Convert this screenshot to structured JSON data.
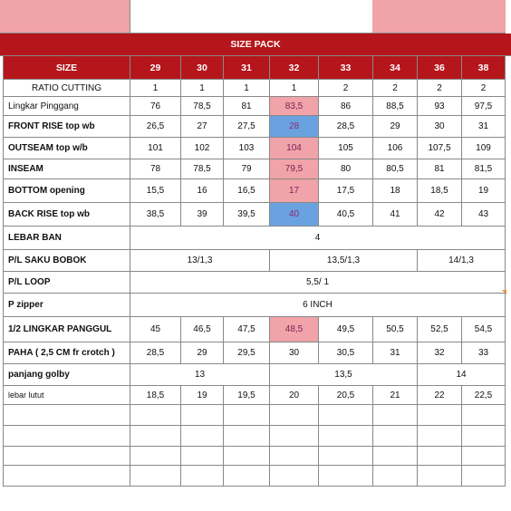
{
  "colors": {
    "header_red": "#b5161c",
    "highlight_pink": "#f0a3a8",
    "highlight_blue": "#6aa2e0"
  },
  "title": "SIZE PACK",
  "size_label": "SIZE",
  "sizes": [
    "29",
    "30",
    "31",
    "32",
    "33",
    "34",
    "36",
    "38"
  ],
  "rows": [
    {
      "label": "RATIO CUTTING",
      "bold": false,
      "center": true,
      "cells": [
        {
          "text": "1",
          "span": 1
        },
        {
          "text": "1",
          "span": 1
        },
        {
          "text": "1",
          "span": 1
        },
        {
          "text": "1",
          "span": 1
        },
        {
          "text": "2",
          "span": 1
        },
        {
          "text": "2",
          "span": 1
        },
        {
          "text": "2",
          "span": 1
        },
        {
          "text": "2",
          "span": 1
        }
      ]
    },
    {
      "label": "Lingkar Pinggang",
      "bold": false,
      "cells": [
        {
          "text": "76",
          "span": 1
        },
        {
          "text": "78,5",
          "span": 1
        },
        {
          "text": "81",
          "span": 1
        },
        {
          "text": "83,5",
          "span": 1,
          "hl": "pink"
        },
        {
          "text": "86",
          "span": 1
        },
        {
          "text": "88,5",
          "span": 1
        },
        {
          "text": "93",
          "span": 1
        },
        {
          "text": "97,5",
          "span": 1
        }
      ]
    },
    {
      "label": "FRONT RISE top wb",
      "bold": true,
      "cells": [
        {
          "text": "26,5",
          "span": 1
        },
        {
          "text": "27",
          "span": 1
        },
        {
          "text": "27,5",
          "span": 1
        },
        {
          "text": "28",
          "span": 1,
          "hl": "blue"
        },
        {
          "text": "28,5",
          "span": 1
        },
        {
          "text": "29",
          "span": 1
        },
        {
          "text": "30",
          "span": 1
        },
        {
          "text": "31",
          "span": 1
        }
      ]
    },
    {
      "label": "OUTSEAM top w/b",
      "bold": true,
      "cells": [
        {
          "text": "101",
          "span": 1
        },
        {
          "text": "102",
          "span": 1
        },
        {
          "text": "103",
          "span": 1
        },
        {
          "text": "104",
          "span": 1,
          "hl": "pink"
        },
        {
          "text": "105",
          "span": 1
        },
        {
          "text": "106",
          "span": 1
        },
        {
          "text": "107,5",
          "span": 1
        },
        {
          "text": "109",
          "span": 1
        }
      ]
    },
    {
      "label": "INSEAM",
      "bold": true,
      "cells": [
        {
          "text": "78",
          "span": 1
        },
        {
          "text": "78,5",
          "span": 1
        },
        {
          "text": "79",
          "span": 1
        },
        {
          "text": "79,5",
          "span": 1,
          "hl": "pink"
        },
        {
          "text": "80",
          "span": 1
        },
        {
          "text": "80,5",
          "span": 1
        },
        {
          "text": "81",
          "span": 1
        },
        {
          "text": "81,5",
          "span": 1
        }
      ]
    },
    {
      "label": "BOTTOM opening",
      "bold": true,
      "cells": [
        {
          "text": "15,5",
          "span": 1
        },
        {
          "text": "16",
          "span": 1
        },
        {
          "text": "16,5",
          "span": 1
        },
        {
          "text": "17",
          "span": 1,
          "hl": "pink"
        },
        {
          "text": "17,5",
          "span": 1
        },
        {
          "text": "18",
          "span": 1
        },
        {
          "text": "18,5",
          "span": 1
        },
        {
          "text": "19",
          "span": 1
        }
      ]
    },
    {
      "label": "BACK RISE top wb",
      "bold": true,
      "cells": [
        {
          "text": "38,5",
          "span": 1
        },
        {
          "text": "39",
          "span": 1
        },
        {
          "text": "39,5",
          "span": 1
        },
        {
          "text": "40",
          "span": 1,
          "hl": "blue"
        },
        {
          "text": "40,5",
          "span": 1
        },
        {
          "text": "41",
          "span": 1
        },
        {
          "text": "42",
          "span": 1
        },
        {
          "text": "43",
          "span": 1
        }
      ]
    },
    {
      "label": "LEBAR BAN",
      "bold": true,
      "cells": [
        {
          "text": "4",
          "span": 8
        }
      ]
    },
    {
      "label": "P/L SAKU BOBOK",
      "bold": true,
      "cells": [
        {
          "text": "13/1,3",
          "span": 3
        },
        {
          "text": "13,5/1,3",
          "span": 3
        },
        {
          "text": "14/1,3",
          "span": 2
        }
      ]
    },
    {
      "label": "P/L LOOP",
      "bold": true,
      "cells": [
        {
          "text": "5,5/ 1",
          "span": 8
        }
      ]
    },
    {
      "label": "P zipper",
      "bold": true,
      "cells": [
        {
          "text": "6 INCH",
          "span": 8
        }
      ]
    },
    {
      "label": "1/2 LINGKAR PANGGUL",
      "bold": true,
      "cells": [
        {
          "text": "45",
          "span": 1
        },
        {
          "text": "46,5",
          "span": 1
        },
        {
          "text": "47,5",
          "span": 1
        },
        {
          "text": "48,5",
          "span": 1,
          "hl": "pink"
        },
        {
          "text": "49,5",
          "span": 1
        },
        {
          "text": "50,5",
          "span": 1
        },
        {
          "text": "52,5",
          "span": 1
        },
        {
          "text": "54,5",
          "span": 1
        }
      ]
    },
    {
      "label": "PAHA ( 2,5 CM fr crotch )",
      "bold": true,
      "cells": [
        {
          "text": "28,5",
          "span": 1
        },
        {
          "text": "29",
          "span": 1
        },
        {
          "text": "29,5",
          "span": 1
        },
        {
          "text": "30",
          "span": 1
        },
        {
          "text": "30,5",
          "span": 1
        },
        {
          "text": "31",
          "span": 1
        },
        {
          "text": "32",
          "span": 1
        },
        {
          "text": "33",
          "span": 1
        }
      ]
    },
    {
      "label": "panjang golby",
      "bold": true,
      "cells": [
        {
          "text": "13",
          "span": 3
        },
        {
          "text": "13,5",
          "span": 3
        },
        {
          "text": "14",
          "span": 2
        }
      ]
    },
    {
      "label": "lebar lutut",
      "bold": false,
      "small": true,
      "cells": [
        {
          "text": "18,5",
          "span": 1
        },
        {
          "text": "19",
          "span": 1
        },
        {
          "text": "19,5",
          "span": 1
        },
        {
          "text": "20",
          "span": 1
        },
        {
          "text": "20,5",
          "span": 1
        },
        {
          "text": "21",
          "span": 1
        },
        {
          "text": "22",
          "span": 1
        },
        {
          "text": "22,5",
          "span": 1
        }
      ]
    },
    {
      "label": "",
      "cells": []
    },
    {
      "label": "",
      "cells": []
    },
    {
      "label": "",
      "cells": []
    },
    {
      "label": "",
      "cells": []
    }
  ]
}
